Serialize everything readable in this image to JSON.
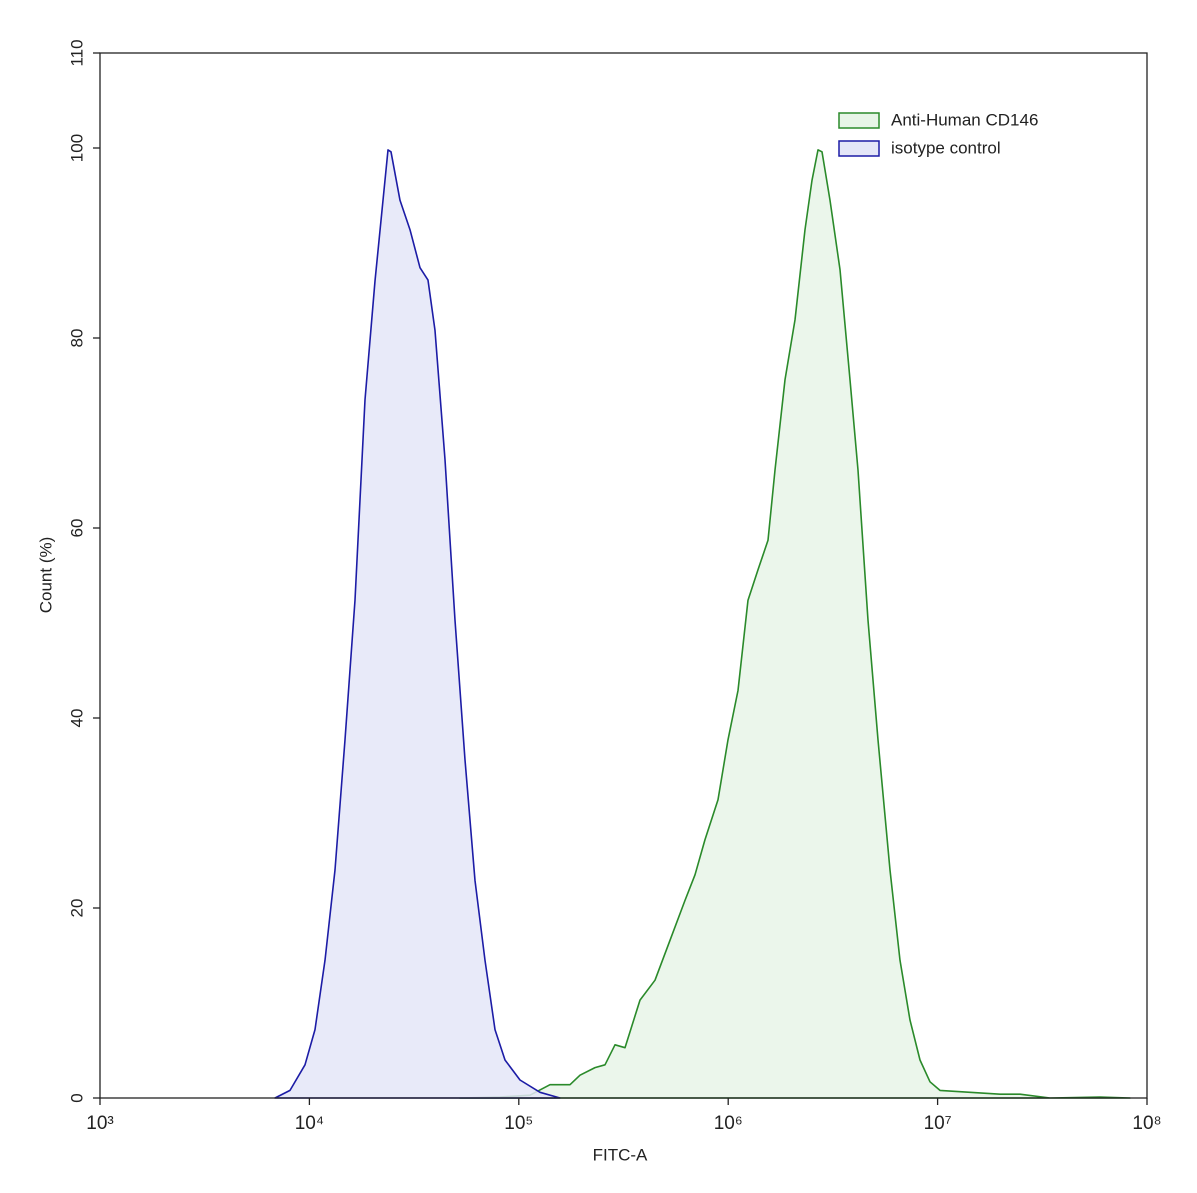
{
  "chart_data": {
    "type": "area",
    "x_label": "FITC-A",
    "y_label": "Count  (%)",
    "xscale": "log",
    "xlim": [
      1000,
      100000000
    ],
    "xticks": [
      {
        "value": 1000,
        "label": "10³"
      },
      {
        "value": 10000,
        "label": "10⁴"
      },
      {
        "value": 100000,
        "label": "10⁵"
      },
      {
        "value": 1000000,
        "label": "10⁶"
      },
      {
        "value": 10000000,
        "label": "10⁷"
      },
      {
        "value": 100000000,
        "label": "10⁸"
      }
    ],
    "ylim": [
      0,
      110
    ],
    "yticks": [
      0,
      20,
      40,
      60,
      80,
      100,
      110
    ],
    "legend": "top-right",
    "series": [
      {
        "name": "Anti-Human CD146",
        "color": "#2a8a2a",
        "fill_color": "#e7f5e7",
        "x": [
          52400,
          81340,
          113100,
          140900,
          175600,
          196000,
          231200,
          258000,
          288000,
          321600,
          379100,
          447200,
          527500,
          622000,
          694300,
          775000,
          894000,
          997700,
          1114000,
          1243000,
          1388000,
          1549000,
          1673000,
          1867000,
          2084000,
          2327000,
          2513000,
          2685000,
          2805000,
          3064000,
          3420000,
          3816000,
          4168000,
          4651000,
          5193000,
          5926000,
          6612000,
          7383000,
          8240000,
          9198000,
          10270000,
          14280000,
          19860000,
          24750000,
          34430000,
          59650000,
          82950000
        ],
        "values": [
          0,
          0.1,
          0.3,
          1.4,
          1.4,
          2.4,
          3.2,
          3.5,
          5.6,
          5.3,
          10.3,
          12.4,
          16.6,
          20.8,
          23.5,
          27.2,
          31.4,
          37.7,
          42.9,
          52.4,
          55.6,
          58.7,
          66.1,
          75.6,
          81.9,
          91.4,
          96.6,
          99.8,
          99.6,
          94.5,
          87.2,
          75.6,
          66.1,
          50.3,
          37.7,
          24,
          14.5,
          8.2,
          4,
          1.7,
          0.8,
          0.6,
          0.4,
          0.4,
          0,
          0.1,
          0
        ]
      },
      {
        "name": "isotype control",
        "color": "#1c1ca6",
        "fill_color": "#e4e6f8",
        "x": [
          6850,
          8080,
          9530,
          10630,
          11870,
          13250,
          14790,
          16510,
          18430,
          20580,
          22470,
          23740,
          24530,
          27080,
          30230,
          33750,
          36860,
          39800,
          44430,
          49590,
          55360,
          61790,
          68970,
          76990,
          85950,
          101300,
          126200,
          157300
        ],
        "values": [
          0,
          0.8,
          3.5,
          7.2,
          14.5,
          24,
          37.7,
          52.4,
          73.5,
          86,
          94.5,
          99.8,
          99.6,
          94.5,
          91.4,
          87.4,
          86.1,
          80.8,
          67.2,
          50.3,
          35.6,
          22.9,
          14.5,
          7.2,
          4,
          1.9,
          0.6,
          0
        ]
      }
    ]
  }
}
